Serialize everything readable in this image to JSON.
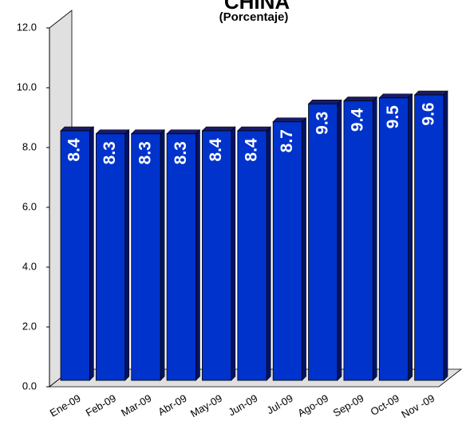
{
  "chart_data": {
    "type": "bar",
    "title": "CHINA",
    "subtitle": "(Porcentaje)",
    "categories": [
      "Ene-09",
      "Feb-09",
      "Mar-09",
      "Abr-09",
      "May-09",
      "Jun-09",
      "Jul-09",
      "Ago-09",
      "Sep-09",
      "Oct-09",
      "Nov -09"
    ],
    "values": [
      8.4,
      8.3,
      8.3,
      8.3,
      8.4,
      8.4,
      8.7,
      9.3,
      9.4,
      9.5,
      9.6
    ],
    "color": "#0033cc",
    "ylim": [
      0,
      12
    ],
    "yticks": [
      {
        "value": 0,
        "label": "0.0"
      },
      {
        "value": 2,
        "label": "2.0"
      },
      {
        "value": 4,
        "label": "4.0"
      },
      {
        "value": 6,
        "label": "6.0"
      },
      {
        "value": 8,
        "label": "8.0"
      },
      {
        "value": 10,
        "label": "10.0"
      },
      {
        "value": 12,
        "label": "12.0"
      }
    ],
    "grid": false
  }
}
